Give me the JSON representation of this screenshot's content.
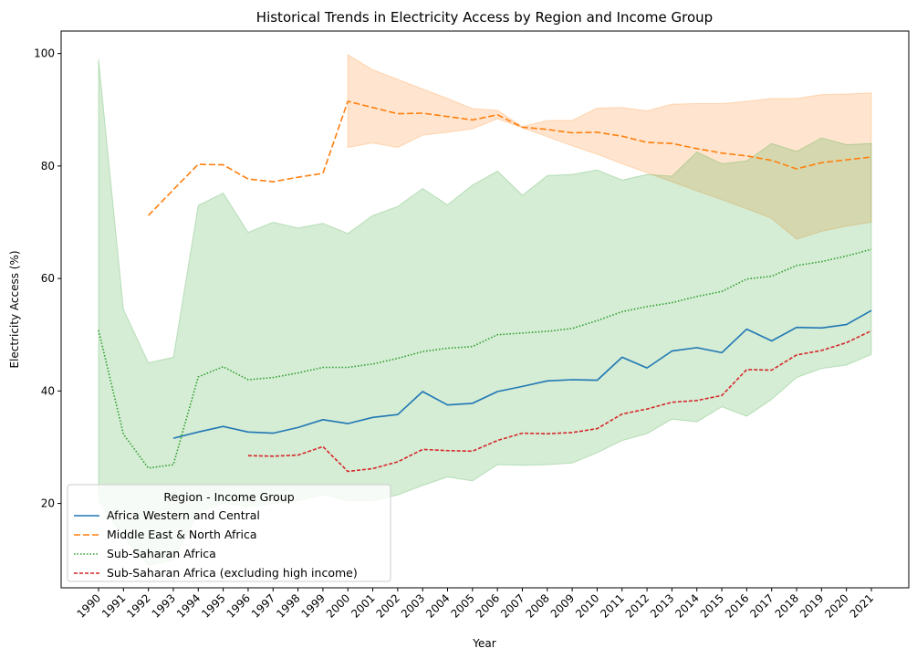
{
  "chart_data": {
    "type": "line",
    "title": "Historical Trends in Electricity Access by Region and Income Group",
    "xlabel": "Year",
    "ylabel": "Electricity Access (%)",
    "ylim": [
      5,
      104
    ],
    "yticks": [
      20,
      40,
      60,
      80,
      100
    ],
    "x": [
      1990,
      1991,
      1992,
      1993,
      1994,
      1995,
      1996,
      1997,
      1998,
      1999,
      2000,
      2001,
      2002,
      2003,
      2004,
      2005,
      2006,
      2007,
      2008,
      2009,
      2010,
      2011,
      2012,
      2013,
      2014,
      2015,
      2016,
      2017,
      2018,
      2019,
      2020,
      2021
    ],
    "grid": false,
    "legend": {
      "title": "Region - Income Group",
      "position": "lower-left"
    },
    "series": [
      {
        "name": "Africa Western and Central",
        "color": "#1f77b4",
        "dash": "solid",
        "values": [
          null,
          null,
          null,
          31.6,
          32.7,
          33.7,
          32.7,
          32.5,
          33.5,
          34.9,
          34.2,
          35.3,
          35.8,
          39.9,
          37.5,
          37.8,
          39.9,
          40.8,
          41.8,
          42.0,
          41.9,
          46.0,
          44.1,
          47.1,
          47.7,
          46.8,
          51.0,
          48.9,
          51.3,
          51.2,
          51.8,
          54.3
        ]
      },
      {
        "name": "Middle East & North Africa",
        "color": "#ff7f0e",
        "dash": "dashed",
        "values": [
          null,
          null,
          71.2,
          75.8,
          80.3,
          80.2,
          77.7,
          77.2,
          78.0,
          78.7,
          91.5,
          90.4,
          89.3,
          89.4,
          88.8,
          88.2,
          89.1,
          86.9,
          86.5,
          85.9,
          86.0,
          85.3,
          84.2,
          84.0,
          83.1,
          82.3,
          81.8,
          81.0,
          79.5,
          80.6,
          81.1,
          81.6
        ],
        "band_low": [
          null,
          null,
          null,
          null,
          null,
          null,
          null,
          null,
          null,
          null,
          83.3,
          84.1,
          83.3,
          85.5,
          86.0,
          86.6,
          88.4,
          86.8,
          85.2,
          83.6,
          82.1,
          80.4,
          78.8,
          77.2,
          75.6,
          74.0,
          72.4,
          70.7,
          67.0,
          68.4,
          69.3,
          70.0
        ],
        "band_high": [
          null,
          null,
          null,
          null,
          null,
          null,
          null,
          null,
          null,
          null,
          99.8,
          97.1,
          95.4,
          93.7,
          92.0,
          90.2,
          89.9,
          87.0,
          88.1,
          88.1,
          90.3,
          90.4,
          89.8,
          91.0,
          91.1,
          91.1,
          91.5,
          92.0,
          92.0,
          92.7,
          92.8,
          93.0
        ]
      },
      {
        "name": "Sub-Saharan Africa",
        "color": "#2ca02c",
        "dash": "dotted",
        "values": [
          50.8,
          32.3,
          26.3,
          26.9,
          42.5,
          44.3,
          42.0,
          42.4,
          43.2,
          44.2,
          44.2,
          44.8,
          45.8,
          47.0,
          47.6,
          47.9,
          50.0,
          50.3,
          50.6,
          51.1,
          52.5,
          54.1,
          55.0,
          55.7,
          56.8,
          57.7,
          59.9,
          60.4,
          62.3,
          63.0,
          64.0,
          65.2
        ],
        "band_low": [
          20.5,
          14.0,
          9.0,
          10.0,
          18.5,
          20.0,
          19.5,
          20.0,
          20.5,
          21.5,
          20.5,
          20.5,
          21.5,
          23.2,
          24.7,
          24.0,
          26.9,
          26.8,
          26.9,
          27.2,
          29.0,
          31.2,
          32.4,
          35.0,
          34.5,
          37.2,
          35.5,
          38.5,
          42.4,
          44.0,
          44.6,
          46.5
        ],
        "band_high": [
          99.0,
          54.5,
          45.0,
          46.0,
          73.0,
          75.2,
          68.2,
          70.0,
          69.0,
          69.8,
          68.0,
          71.2,
          72.8,
          76.0,
          73.1,
          76.6,
          79.1,
          74.8,
          78.3,
          78.5,
          79.3,
          77.5,
          78.5,
          78.2,
          82.5,
          80.4,
          80.9,
          84.0,
          82.6,
          85.0,
          83.8,
          84.0
        ]
      },
      {
        "name": "Sub-Saharan Africa (excluding high income)",
        "color": "#d62728",
        "dash": "densely-dashed",
        "values": [
          null,
          null,
          null,
          null,
          null,
          null,
          28.5,
          28.4,
          28.6,
          30.1,
          25.7,
          26.2,
          27.4,
          29.6,
          29.4,
          29.3,
          31.2,
          32.5,
          32.4,
          32.6,
          33.3,
          35.9,
          36.8,
          38.0,
          38.3,
          39.2,
          43.8,
          43.7,
          46.4,
          47.2,
          48.6,
          50.7
        ]
      }
    ]
  }
}
